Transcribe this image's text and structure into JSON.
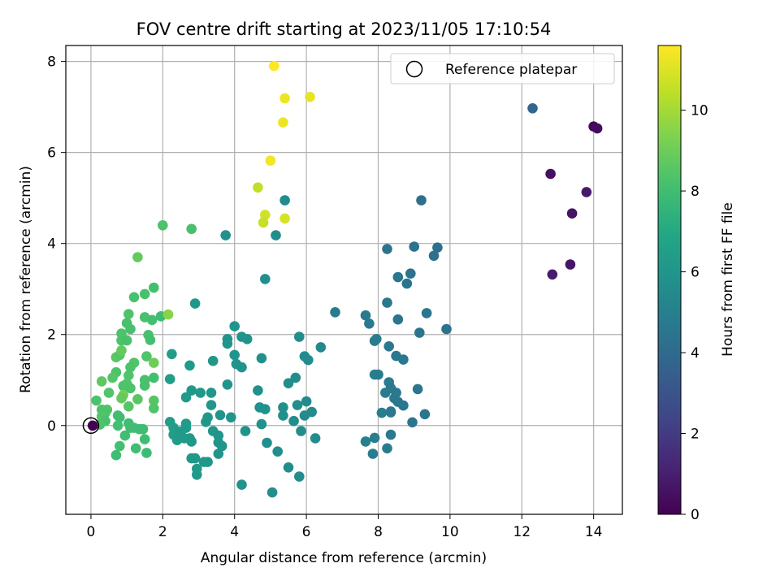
{
  "chart_data": {
    "type": "scatter",
    "title": "FOV centre drift starting at 2023/11/05 17:10:54",
    "xlabel": "Angular distance from reference (arcmin)",
    "ylabel": "Rotation from reference (arcmin)",
    "xlim": [
      -0.7,
      14.8
    ],
    "ylim": [
      -1.95,
      8.35
    ],
    "xticks": [
      0,
      2,
      4,
      6,
      8,
      10,
      12,
      14
    ],
    "yticks": [
      0,
      2,
      4,
      6,
      8
    ],
    "grid": true,
    "legend": {
      "placement": "top-right",
      "entries": [
        "Reference platepar"
      ]
    },
    "reference_point": {
      "x": 0,
      "y": 0
    },
    "colorbar": {
      "label": "Hours from first FF file",
      "colormap": "viridis",
      "range": [
        0,
        11.6
      ],
      "ticks": [
        0,
        2,
        4,
        6,
        8,
        10
      ]
    },
    "series": [
      {
        "points": [
          [
            14.0,
            6.57,
            0.3
          ],
          [
            14.1,
            6.53,
            0.4
          ],
          [
            12.8,
            5.53,
            0.5
          ],
          [
            13.8,
            5.13,
            0.8
          ],
          [
            13.4,
            4.66,
            0.6
          ],
          [
            13.35,
            3.54,
            0.7
          ],
          [
            12.85,
            3.32,
            0.9
          ],
          [
            12.3,
            6.97,
            3.8
          ],
          [
            9.2,
            4.95,
            4.2
          ],
          [
            9.0,
            3.93,
            4.3
          ],
          [
            9.65,
            3.91,
            4.2
          ],
          [
            8.25,
            3.88,
            4.4
          ],
          [
            9.55,
            3.73,
            4.3
          ],
          [
            8.9,
            3.34,
            4.4
          ],
          [
            8.55,
            3.26,
            4.5
          ],
          [
            8.8,
            3.12,
            4.4
          ],
          [
            6.8,
            2.49,
            4.8
          ],
          [
            7.65,
            2.42,
            4.7
          ],
          [
            7.75,
            2.24,
            4.7
          ],
          [
            8.25,
            2.7,
            4.6
          ],
          [
            8.55,
            2.33,
            4.5
          ],
          [
            9.35,
            2.47,
            4.5
          ],
          [
            9.9,
            2.12,
            4.4
          ],
          [
            9.15,
            2.04,
            4.5
          ],
          [
            7.95,
            1.9,
            4.8
          ],
          [
            7.9,
            1.86,
            4.8
          ],
          [
            8.3,
            1.74,
            4.7
          ],
          [
            8.5,
            1.53,
            4.6
          ],
          [
            8.7,
            1.45,
            4.6
          ],
          [
            7.9,
            1.12,
            4.9
          ],
          [
            8.0,
            1.12,
            4.8
          ],
          [
            8.3,
            0.95,
            4.8
          ],
          [
            8.35,
            0.82,
            4.7
          ],
          [
            8.2,
            0.72,
            4.8
          ],
          [
            8.45,
            0.6,
            4.7
          ],
          [
            8.5,
            0.72,
            4.7
          ],
          [
            8.55,
            0.52,
            4.6
          ],
          [
            8.7,
            0.44,
            4.6
          ],
          [
            9.1,
            0.8,
            4.5
          ],
          [
            8.1,
            0.28,
            4.9
          ],
          [
            8.35,
            0.31,
            4.7
          ],
          [
            8.35,
            0.29,
            4.7
          ],
          [
            9.3,
            0.25,
            4.5
          ],
          [
            8.95,
            0.07,
            4.5
          ],
          [
            7.65,
            -0.35,
            5.0
          ],
          [
            7.9,
            -0.27,
            4.9
          ],
          [
            8.35,
            -0.2,
            4.7
          ],
          [
            8.25,
            -0.5,
            4.8
          ],
          [
            7.85,
            -0.62,
            4.9
          ],
          [
            5.4,
            4.95,
            5.5
          ],
          [
            5.15,
            4.18,
            5.6
          ],
          [
            4.85,
            3.22,
            5.7
          ],
          [
            3.75,
            4.18,
            5.8
          ],
          [
            2.9,
            2.68,
            6.2
          ],
          [
            4.0,
            2.18,
            6.0
          ],
          [
            4.2,
            1.95,
            5.9
          ],
          [
            4.35,
            1.9,
            5.9
          ],
          [
            3.8,
            1.9,
            6.0
          ],
          [
            3.8,
            1.8,
            6.0
          ],
          [
            4.0,
            1.55,
            6.0
          ],
          [
            4.05,
            1.35,
            6.0
          ],
          [
            4.2,
            1.28,
            5.9
          ],
          [
            4.75,
            1.48,
            5.8
          ],
          [
            5.8,
            1.95,
            5.6
          ],
          [
            5.95,
            1.52,
            5.5
          ],
          [
            6.05,
            1.44,
            5.5
          ],
          [
            6.4,
            1.72,
            5.4
          ],
          [
            5.7,
            1.05,
            5.6
          ],
          [
            5.5,
            0.93,
            5.6
          ],
          [
            4.65,
            0.77,
            5.8
          ],
          [
            3.8,
            0.9,
            6.0
          ],
          [
            2.8,
            0.77,
            6.2
          ],
          [
            2.65,
            0.62,
            6.3
          ],
          [
            3.05,
            0.72,
            6.2
          ],
          [
            3.35,
            0.72,
            6.1
          ],
          [
            3.35,
            0.45,
            6.1
          ],
          [
            3.6,
            0.23,
            6.0
          ],
          [
            3.9,
            0.18,
            6.0
          ],
          [
            4.7,
            0.4,
            5.8
          ],
          [
            4.85,
            0.36,
            5.8
          ],
          [
            5.35,
            0.4,
            5.7
          ],
          [
            5.35,
            0.22,
            5.7
          ],
          [
            5.65,
            0.1,
            5.6
          ],
          [
            5.75,
            0.45,
            5.6
          ],
          [
            6.0,
            0.53,
            5.5
          ],
          [
            5.95,
            0.22,
            5.5
          ],
          [
            6.15,
            0.3,
            5.5
          ],
          [
            4.75,
            0.03,
            5.8
          ],
          [
            5.85,
            -0.12,
            5.6
          ],
          [
            4.3,
            -0.12,
            5.9
          ],
          [
            3.4,
            -0.12,
            6.1
          ],
          [
            3.55,
            -0.22,
            6.0
          ],
          [
            3.2,
            0.08,
            6.1
          ],
          [
            3.25,
            0.18,
            6.1
          ],
          [
            2.2,
            1.02,
            6.4
          ],
          [
            2.25,
            1.57,
            6.4
          ],
          [
            2.75,
            1.32,
            6.3
          ],
          [
            3.4,
            1.42,
            6.1
          ],
          [
            2.2,
            0.08,
            6.4
          ],
          [
            2.3,
            -0.05,
            6.4
          ],
          [
            2.3,
            -0.2,
            6.4
          ],
          [
            2.35,
            -0.22,
            6.4
          ],
          [
            2.45,
            -0.22,
            6.3
          ],
          [
            2.4,
            -0.32,
            6.3
          ],
          [
            2.65,
            -0.05,
            6.3
          ],
          [
            2.65,
            0.04,
            6.3
          ],
          [
            2.5,
            -0.13,
            6.3
          ],
          [
            2.6,
            -0.28,
            6.3
          ],
          [
            2.75,
            -0.28,
            6.3
          ],
          [
            2.8,
            -0.35,
            6.2
          ],
          [
            2.8,
            -0.72,
            6.2
          ],
          [
            2.9,
            -0.72,
            6.2
          ],
          [
            2.95,
            -0.95,
            6.2
          ],
          [
            2.95,
            -1.08,
            6.2
          ],
          [
            3.15,
            -0.8,
            6.1
          ],
          [
            3.25,
            -0.8,
            6.1
          ],
          [
            3.55,
            -0.37,
            6.0
          ],
          [
            3.65,
            -0.45,
            6.0
          ],
          [
            3.55,
            -0.62,
            6.0
          ],
          [
            4.9,
            -0.38,
            5.7
          ],
          [
            5.2,
            -0.57,
            5.7
          ],
          [
            5.5,
            -0.92,
            5.6
          ],
          [
            5.8,
            -1.12,
            5.6
          ],
          [
            6.25,
            -0.28,
            5.5
          ],
          [
            4.2,
            -1.3,
            5.9
          ],
          [
            5.05,
            -1.47,
            5.7
          ],
          [
            6.1,
            7.22,
            11.2
          ],
          [
            5.4,
            7.19,
            11.3
          ],
          [
            5.35,
            6.66,
            11.3
          ],
          [
            5.0,
            5.82,
            11.4
          ],
          [
            4.65,
            5.23,
            10.5
          ],
          [
            4.85,
            4.63,
            10.8
          ],
          [
            4.8,
            4.46,
            10.6
          ],
          [
            5.4,
            4.55,
            10.9
          ],
          [
            5.1,
            7.9,
            11.6
          ],
          [
            2.0,
            4.4,
            8.3
          ],
          [
            2.8,
            4.32,
            8.2
          ],
          [
            1.3,
            3.7,
            8.8
          ],
          [
            1.75,
            3.03,
            8.1
          ],
          [
            1.5,
            2.89,
            8.2
          ],
          [
            1.2,
            2.82,
            8.2
          ],
          [
            1.05,
            2.45,
            8.4
          ],
          [
            1.5,
            2.38,
            8.2
          ],
          [
            1.7,
            2.32,
            8.1
          ],
          [
            1.95,
            2.4,
            7.9
          ],
          [
            2.15,
            2.44,
            9.5
          ],
          [
            1.0,
            2.25,
            8.2
          ],
          [
            1.1,
            2.12,
            8.2
          ],
          [
            0.85,
            2.02,
            8.3
          ],
          [
            0.85,
            1.87,
            8.3
          ],
          [
            1.0,
            1.87,
            8.2
          ],
          [
            1.6,
            1.99,
            8.2
          ],
          [
            1.65,
            1.88,
            8.1
          ],
          [
            0.7,
            1.5,
            8.6
          ],
          [
            0.8,
            1.55,
            8.5
          ],
          [
            0.85,
            1.65,
            8.8
          ],
          [
            1.55,
            1.52,
            8.4
          ],
          [
            1.75,
            1.38,
            9.0
          ],
          [
            0.7,
            1.17,
            8.3
          ],
          [
            0.6,
            1.05,
            8.5
          ],
          [
            1.2,
            1.38,
            8.4
          ],
          [
            1.1,
            1.28,
            8.3
          ],
          [
            1.05,
            1.1,
            8.4
          ],
          [
            0.9,
            0.87,
            8.3
          ],
          [
            1.0,
            0.92,
            8.4
          ],
          [
            1.5,
            1.0,
            8.2
          ],
          [
            1.5,
            0.88,
            8.2
          ],
          [
            1.75,
            1.05,
            8.1
          ],
          [
            0.3,
            0.97,
            8.7
          ],
          [
            1.1,
            0.82,
            8.3
          ],
          [
            0.9,
            0.67,
            9.1
          ],
          [
            0.85,
            0.6,
            8.8
          ],
          [
            1.3,
            0.58,
            8.6
          ],
          [
            1.75,
            0.55,
            8.5
          ],
          [
            1.75,
            0.38,
            8.4
          ],
          [
            1.05,
            0.42,
            8.5
          ],
          [
            0.5,
            0.72,
            8.4
          ],
          [
            0.15,
            0.55,
            8.3
          ],
          [
            0.3,
            0.35,
            8.3
          ],
          [
            0.45,
            0.35,
            8.4
          ],
          [
            0.4,
            0.28,
            8.3
          ],
          [
            0.3,
            0.2,
            8.4
          ],
          [
            0.4,
            0.1,
            8.2
          ],
          [
            0.25,
            0.02,
            8.3
          ],
          [
            0.8,
            0.18,
            8.0
          ],
          [
            0.75,
            0.22,
            8.0
          ],
          [
            0.75,
            0.0,
            8.1
          ],
          [
            1.05,
            0.05,
            8.0
          ],
          [
            1.1,
            -0.05,
            8.0
          ],
          [
            1.2,
            -0.05,
            8.0
          ],
          [
            1.35,
            -0.08,
            7.9
          ],
          [
            1.45,
            -0.08,
            7.9
          ],
          [
            0.95,
            -0.22,
            8.0
          ],
          [
            0.8,
            -0.45,
            8.1
          ],
          [
            0.7,
            -0.65,
            8.0
          ],
          [
            1.25,
            -0.5,
            8.0
          ],
          [
            1.5,
            -0.3,
            8.0
          ],
          [
            1.55,
            -0.6,
            7.9
          ],
          [
            0.05,
            0.0,
            0.0
          ]
        ]
      }
    ]
  }
}
